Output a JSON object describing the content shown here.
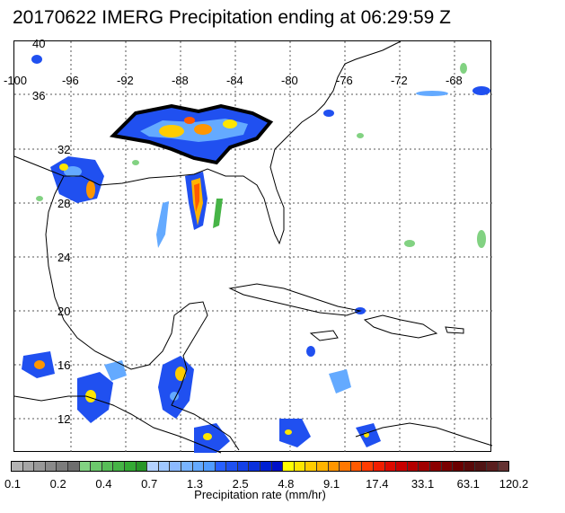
{
  "title": "20170622 IMERG Precipitation ending at 06:29:59 Z",
  "map": {
    "region": "Gulf of Mexico and Caribbean",
    "lon_labels": [
      "-100",
      "-96",
      "-92",
      "-88",
      "-84",
      "-80",
      "-76",
      "-72",
      "-68"
    ],
    "lat_labels": [
      "40",
      "36",
      "32",
      "28",
      "24",
      "20",
      "16",
      "12"
    ],
    "gridlines": "dotted",
    "coastline_color": "#000000"
  },
  "colorbar": {
    "label": "Precipitation rate (mm/hr)",
    "tick_labels": [
      "0.1",
      "0.2",
      "0.4",
      "0.7",
      "1.3",
      "2.5",
      "4.8",
      "9.1",
      "17.4",
      "33.1",
      "63.1",
      "120.2"
    ],
    "colors": [
      "#b4b4b4",
      "#a6a6a6",
      "#989898",
      "#8a8a8a",
      "#7c7c7c",
      "#6e6e6e",
      "#82d282",
      "#6cc86c",
      "#58be58",
      "#46b446",
      "#34aa34",
      "#289628",
      "#b4d2ff",
      "#a0c8ff",
      "#8cbaff",
      "#78b4ff",
      "#64aaff",
      "#509cff",
      "#2860ff",
      "#1e50f0",
      "#1440e6",
      "#0a30dc",
      "#0020d2",
      "#0010c8",
      "#ffff00",
      "#ffe600",
      "#ffcc00",
      "#ffb400",
      "#ff9600",
      "#ff7800",
      "#ff5a00",
      "#ff3c00",
      "#f01e00",
      "#dc0a00",
      "#c80000",
      "#b40000",
      "#a00000",
      "#8c0000",
      "#7a0000",
      "#6a0000",
      "#5a0a0a",
      "#501414",
      "#5a1e1e",
      "#643232"
    ]
  }
}
